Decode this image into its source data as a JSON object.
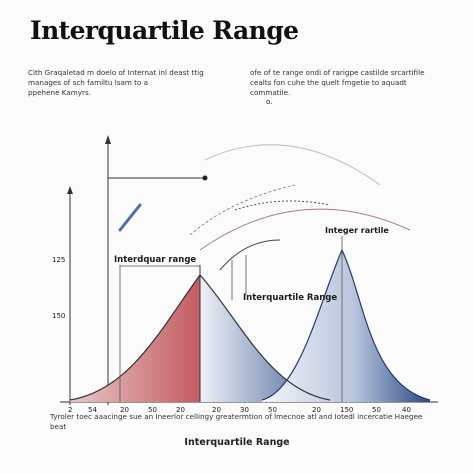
{
  "title": "Interquartile Range",
  "left_text": "Cith Graqaletad m doelo of Internat inl deast ttig\nmanages of sch familtu lsam to a\nppehene Kamyrs.",
  "right_text": "ofe of te range ondi of rarigpe castilde srcartifile\ncealts fon cuhe the quelt fmgetie to aquadt\ncommatile.",
  "small_mark": "o.",
  "labels": {
    "interquartile_left": "Interdquar range",
    "interquartile_middle": "Interquartile Range",
    "interquartile_right": "Integer rartile"
  },
  "y_ticks": [
    "125",
    "150"
  ],
  "x_ticks": [
    "2",
    "54",
    "20",
    "50",
    "20",
    "20",
    "30",
    "50",
    "20",
    "150",
    "50",
    "40"
  ],
  "footnote": "Tyroler toec aaacinge sue an Ineerlor cellingy greatermtion of lmecnoe atl and Iotedl incercatie Haegee beat",
  "bottom_label": "Interquartile Range",
  "colors": {
    "red_fill": "#c35c62",
    "blue_fill": "#2f4f87",
    "axis": "#333333"
  }
}
